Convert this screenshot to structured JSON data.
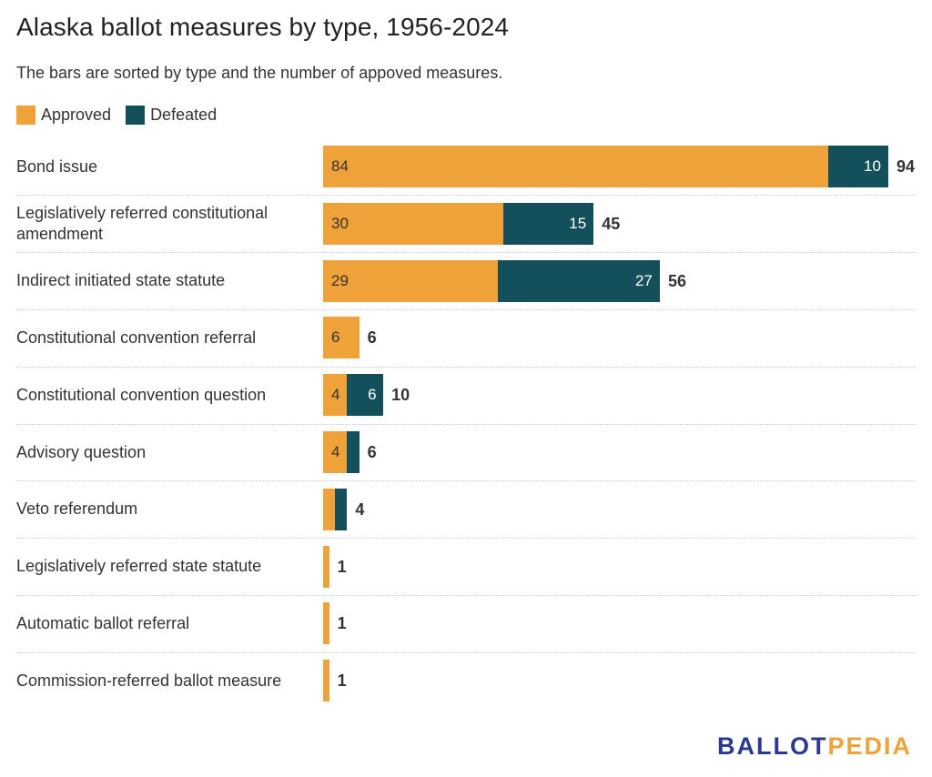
{
  "title": "Alaska ballot measures by type, 1956-2024",
  "subtitle": "The bars are sorted by type and the number of appoved measures.",
  "legend": {
    "approved_label": "Approved",
    "defeated_label": "Defeated"
  },
  "colors": {
    "approved": "#f0a23a",
    "defeated": "#14505c"
  },
  "logo": {
    "part1": "BALLOT",
    "part2": "PEDIA"
  },
  "chart_data": {
    "type": "bar",
    "orientation": "horizontal",
    "stacked": true,
    "categories": [
      "Bond issue",
      "Legislatively referred constitutional amendment",
      "Indirect initiated state statute",
      "Constitutional convention referral",
      "Constitutional convention question",
      "Advisory question",
      "Veto referendum",
      "Legislatively referred state statute",
      "Automatic ballot referral",
      "Commission-referred ballot measure"
    ],
    "series": [
      {
        "name": "Approved",
        "values": [
          84,
          30,
          29,
          6,
          4,
          4,
          2,
          1,
          1,
          1
        ]
      },
      {
        "name": "Defeated",
        "values": [
          10,
          15,
          27,
          0,
          6,
          2,
          2,
          0,
          0,
          0
        ]
      }
    ],
    "approved_labels": [
      "84",
      "30",
      "29",
      "6",
      "4",
      "4",
      "",
      "",
      "",
      ""
    ],
    "defeated_labels": [
      "10",
      "15",
      "27",
      "",
      "6",
      "",
      "",
      "",
      "",
      ""
    ],
    "totals": [
      "94",
      "45",
      "56",
      "6",
      "10",
      "6",
      "4",
      "1",
      "1",
      "1"
    ],
    "xlim": [
      0,
      94
    ],
    "legend_position": "top-left",
    "grid": false
  }
}
